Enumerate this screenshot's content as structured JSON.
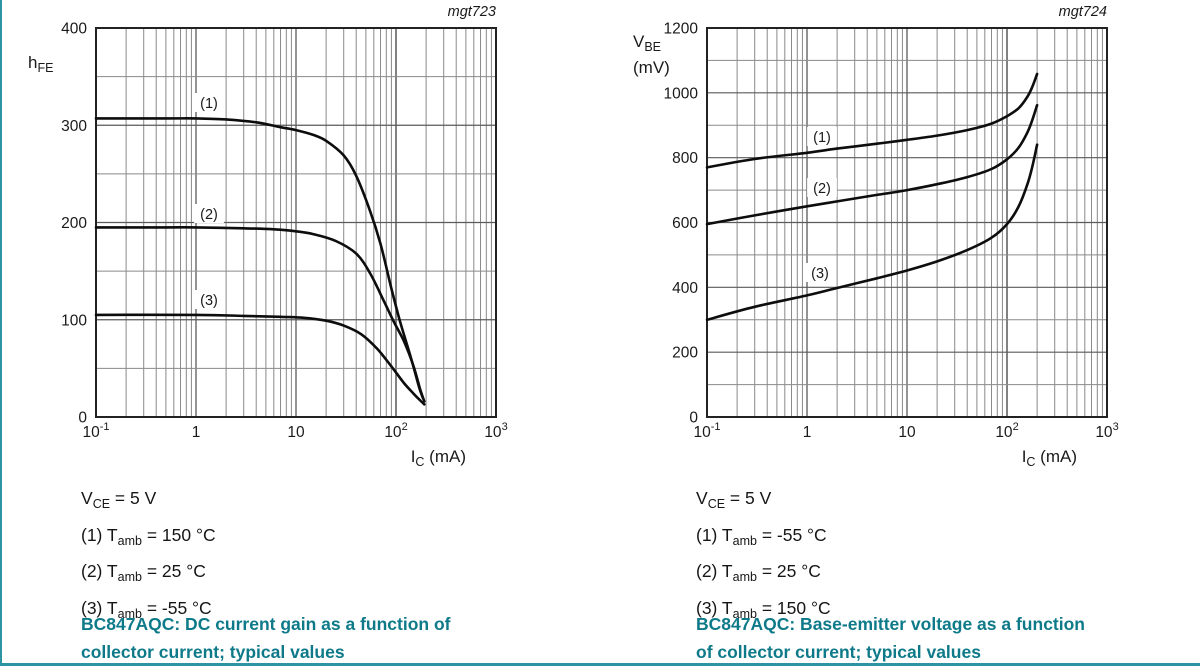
{
  "page": {
    "accent_teal": "#0e7a89",
    "divider_color": "#2e93a3",
    "curve_color": "#0d0d0d",
    "grid_minor_color": "#8a8a8a",
    "grid_major_color": "#5a5a5a",
    "frame_color": "#222222"
  },
  "chart_data": [
    {
      "type": "line",
      "fig_id": "mgt723",
      "title": "BC847AQC: DC current gain as a function of collector current; typical values",
      "caption_lines": [
        "BC847AQC: DC current gain as a function of",
        "collector current; typical values"
      ],
      "x_axis": {
        "scale": "log",
        "min": 0.1,
        "max": 1000,
        "unit": "mA",
        "label": [
          {
            "t": "I"
          },
          {
            "s": "C"
          },
          {
            "t": " (mA)"
          }
        ],
        "ticks": [
          {
            "base": "10",
            "exp": "-1"
          },
          {
            "base": "1"
          },
          {
            "base": "10"
          },
          {
            "base": "10",
            "exp": "2"
          },
          {
            "base": "10",
            "exp": "3"
          }
        ]
      },
      "y_axis": {
        "min": 0,
        "max": 400,
        "major_step": 100,
        "minor_step": 50,
        "unit": "",
        "label": [
          [
            {
              "t": "h"
            },
            {
              "s": "FE"
            }
          ]
        ]
      },
      "conditions": [
        [
          {
            "t": "V"
          },
          {
            "s": "CE"
          },
          {
            "t": " = 5 V"
          }
        ],
        [
          {
            "t": "(1) T"
          },
          {
            "s": "amb"
          },
          {
            "t": " = 150 °C"
          }
        ],
        [
          {
            "t": "(2) T"
          },
          {
            "s": "amb"
          },
          {
            "t": " = 25 °C"
          }
        ],
        [
          {
            "t": "(3) T"
          },
          {
            "s": "amb"
          },
          {
            "t": " = -55 °C"
          }
        ]
      ],
      "series": [
        {
          "name": "(1) Tamb = 150 °C",
          "label": "(1)",
          "label_xy": [
            209,
            103
          ],
          "points": [
            [
              0.1,
              307
            ],
            [
              0.5,
              307
            ],
            [
              1,
              307
            ],
            [
              2,
              306
            ],
            [
              4,
              303
            ],
            [
              7,
              298
            ],
            [
              10,
              295
            ],
            [
              15,
              290
            ],
            [
              20,
              284
            ],
            [
              30,
              269
            ],
            [
              40,
              248
            ],
            [
              55,
              212
            ],
            [
              70,
              178
            ],
            [
              90,
              132
            ],
            [
              110,
              98
            ],
            [
              140,
              62
            ],
            [
              170,
              31
            ],
            [
              185,
              20
            ]
          ]
        },
        {
          "name": "(2) Tamb = 25 °C",
          "label": "(2)",
          "label_xy": [
            209,
            214
          ],
          "points": [
            [
              0.1,
              195
            ],
            [
              0.5,
              195
            ],
            [
              1,
              195
            ],
            [
              3,
              194
            ],
            [
              6,
              193
            ],
            [
              10,
              191
            ],
            [
              15,
              188
            ],
            [
              25,
              181
            ],
            [
              40,
              168
            ],
            [
              55,
              148
            ],
            [
              75,
              120
            ],
            [
              95,
              98
            ],
            [
              120,
              78
            ],
            [
              150,
              52
            ],
            [
              175,
              28
            ],
            [
              192,
              16
            ]
          ]
        },
        {
          "name": "(3) Tamb = -55 °C",
          "label": "(3)",
          "label_xy": [
            209,
            300
          ],
          "points": [
            [
              0.1,
              105
            ],
            [
              1,
              105
            ],
            [
              3,
              104
            ],
            [
              7,
              103
            ],
            [
              12,
              102
            ],
            [
              20,
              99
            ],
            [
              30,
              94
            ],
            [
              45,
              85
            ],
            [
              65,
              70
            ],
            [
              90,
              52
            ],
            [
              120,
              35
            ],
            [
              150,
              24
            ],
            [
              175,
              17
            ],
            [
              192,
              13
            ]
          ]
        }
      ]
    },
    {
      "type": "line",
      "fig_id": "mgt724",
      "title": "BC847AQC: Base-emitter voltage as a function of collector current; typical values",
      "caption_lines": [
        "BC847AQC: Base-emitter voltage as a function",
        "of collector current; typical values"
      ],
      "x_axis": {
        "scale": "log",
        "min": 0.1,
        "max": 1000,
        "unit": "mA",
        "label": [
          {
            "t": "I"
          },
          {
            "s": "C"
          },
          {
            "t": " (mA)"
          }
        ],
        "ticks": [
          {
            "base": "10",
            "exp": "-1"
          },
          {
            "base": "1"
          },
          {
            "base": "10"
          },
          {
            "base": "10",
            "exp": "2"
          },
          {
            "base": "10",
            "exp": "3"
          }
        ]
      },
      "y_axis": {
        "min": 0,
        "max": 1200,
        "major_step": 200,
        "minor_step": 100,
        "unit": "mV",
        "label": [
          [
            {
              "t": "V"
            },
            {
              "s": "BE"
            }
          ],
          [
            {
              "t": "(mV)"
            }
          ]
        ]
      },
      "conditions": [
        [
          {
            "t": "V"
          },
          {
            "s": "CE"
          },
          {
            "t": " = 5 V"
          }
        ],
        [
          {
            "t": "(1) T"
          },
          {
            "s": "amb"
          },
          {
            "t": " = -55 °C"
          }
        ],
        [
          {
            "t": "(2) T"
          },
          {
            "s": "amb"
          },
          {
            "t": " = 25 °C"
          }
        ],
        [
          {
            "t": "(3) T"
          },
          {
            "s": "amb"
          },
          {
            "t": " = 150 °C"
          }
        ]
      ],
      "series": [
        {
          "name": "(1) Tamb = -55 °C",
          "label": "(1)",
          "label_xy": [
            222,
            137
          ],
          "points": [
            [
              0.1,
              770
            ],
            [
              0.3,
              796
            ],
            [
              1,
              815
            ],
            [
              2,
              828
            ],
            [
              5,
              843
            ],
            [
              10,
              855
            ],
            [
              20,
              868
            ],
            [
              40,
              885
            ],
            [
              70,
              905
            ],
            [
              100,
              928
            ],
            [
              130,
              952
            ],
            [
              160,
              988
            ],
            [
              180,
              1020
            ],
            [
              200,
              1058
            ]
          ]
        },
        {
          "name": "(2) Tamb = 25 °C",
          "label": "(2)",
          "label_xy": [
            222,
            188
          ],
          "points": [
            [
              0.1,
              595
            ],
            [
              0.3,
              622
            ],
            [
              1,
              650
            ],
            [
              2,
              665
            ],
            [
              5,
              685
            ],
            [
              10,
              700
            ],
            [
              20,
              718
            ],
            [
              40,
              740
            ],
            [
              70,
              765
            ],
            [
              100,
              795
            ],
            [
              130,
              830
            ],
            [
              160,
              878
            ],
            [
              180,
              918
            ],
            [
              200,
              962
            ]
          ]
        },
        {
          "name": "(3) Tamb = 150 °C",
          "label": "(3)",
          "label_xy": [
            220,
            273
          ],
          "points": [
            [
              0.1,
              300
            ],
            [
              0.3,
              340
            ],
            [
              1,
              375
            ],
            [
              2,
              398
            ],
            [
              5,
              428
            ],
            [
              10,
              452
            ],
            [
              20,
              480
            ],
            [
              40,
              515
            ],
            [
              70,
              553
            ],
            [
              100,
              595
            ],
            [
              130,
              648
            ],
            [
              160,
              718
            ],
            [
              180,
              775
            ],
            [
              200,
              840
            ]
          ]
        }
      ]
    }
  ]
}
